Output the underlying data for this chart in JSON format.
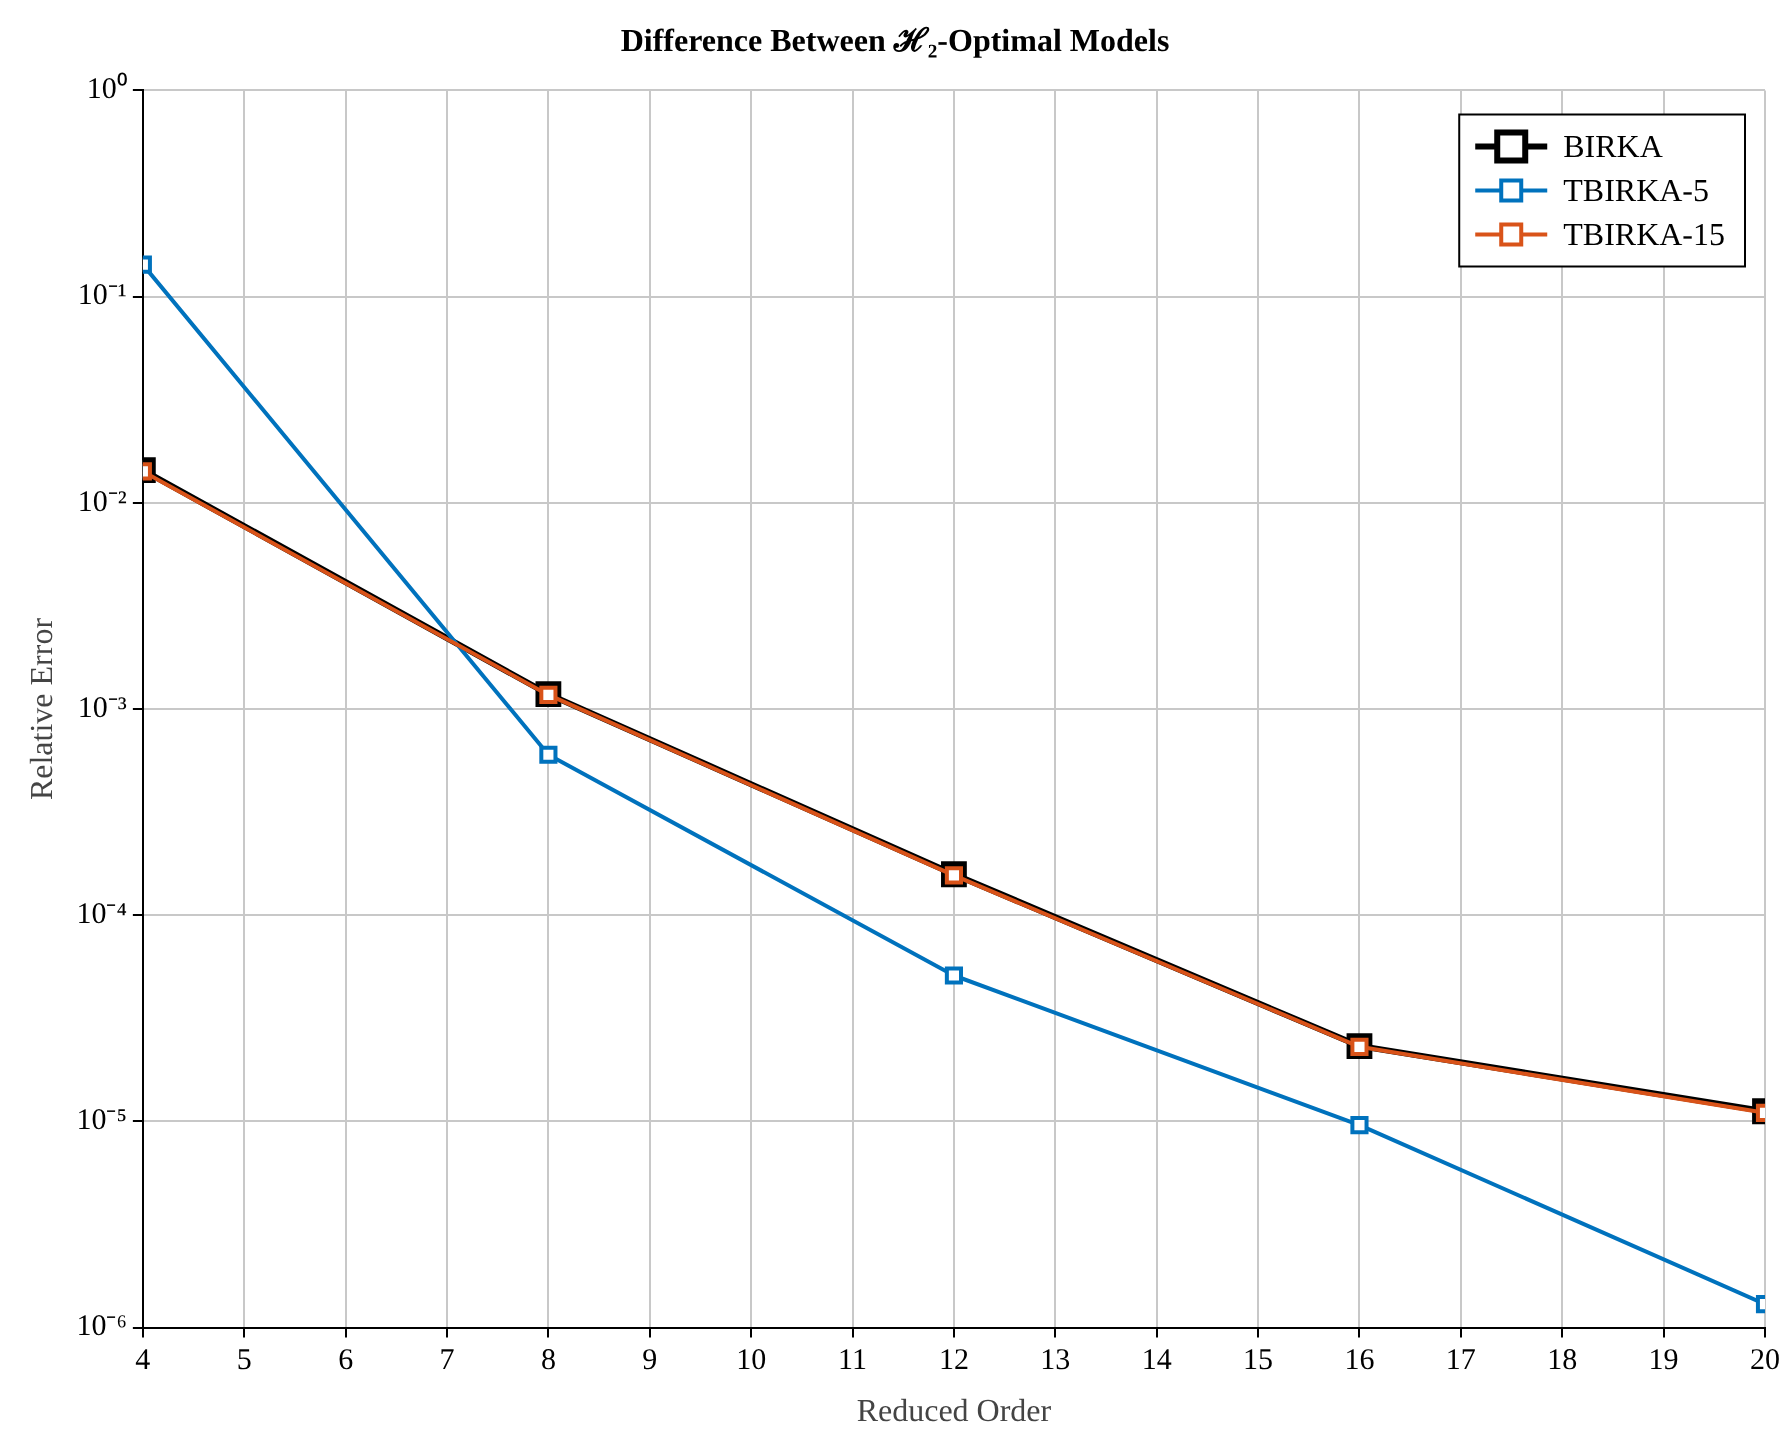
{
  "chart_data": {
    "type": "line",
    "title": "Difference Between ℋ₂-Optimal Models",
    "xlabel": "Reduced Order",
    "ylabel": "Relative Error",
    "x": [
      4,
      8,
      12,
      16,
      20
    ],
    "series": [
      {
        "name": "BIRKA",
        "color": "#000000",
        "values": [
          0.0144,
          0.00118,
          0.000158,
          2.32e-05,
          1.12e-05
        ]
      },
      {
        "name": "TBIRKA-5",
        "color": "#0072bd",
        "values": [
          0.143,
          0.0006,
          5.1e-05,
          9.6e-06,
          1.3e-06
        ]
      },
      {
        "name": "TBIRKA-15",
        "color": "#d95319",
        "values": [
          0.0142,
          0.00117,
          0.000156,
          2.3e-05,
          1.1e-05
        ]
      }
    ],
    "log": "y",
    "xlim": [
      4,
      20
    ],
    "ylim": [
      1e-06,
      1
    ],
    "xticks": [
      4,
      5,
      6,
      7,
      8,
      9,
      10,
      11,
      12,
      13,
      14,
      15,
      16,
      17,
      18,
      19,
      20
    ],
    "yticks": [
      {
        "value": 1e-06,
        "label": "10⁻⁶"
      },
      {
        "value": 1e-05,
        "label": "10⁻⁵"
      },
      {
        "value": 0.0001,
        "label": "10⁻⁴"
      },
      {
        "value": 0.001,
        "label": "10⁻³"
      },
      {
        "value": 0.01,
        "label": "10⁻²"
      },
      {
        "value": 0.1,
        "label": "10⁻¹"
      },
      {
        "value": 1,
        "label": "10⁰"
      }
    ],
    "grid": true,
    "legend": "top right",
    "marker": "square",
    "line_style": "solid"
  }
}
